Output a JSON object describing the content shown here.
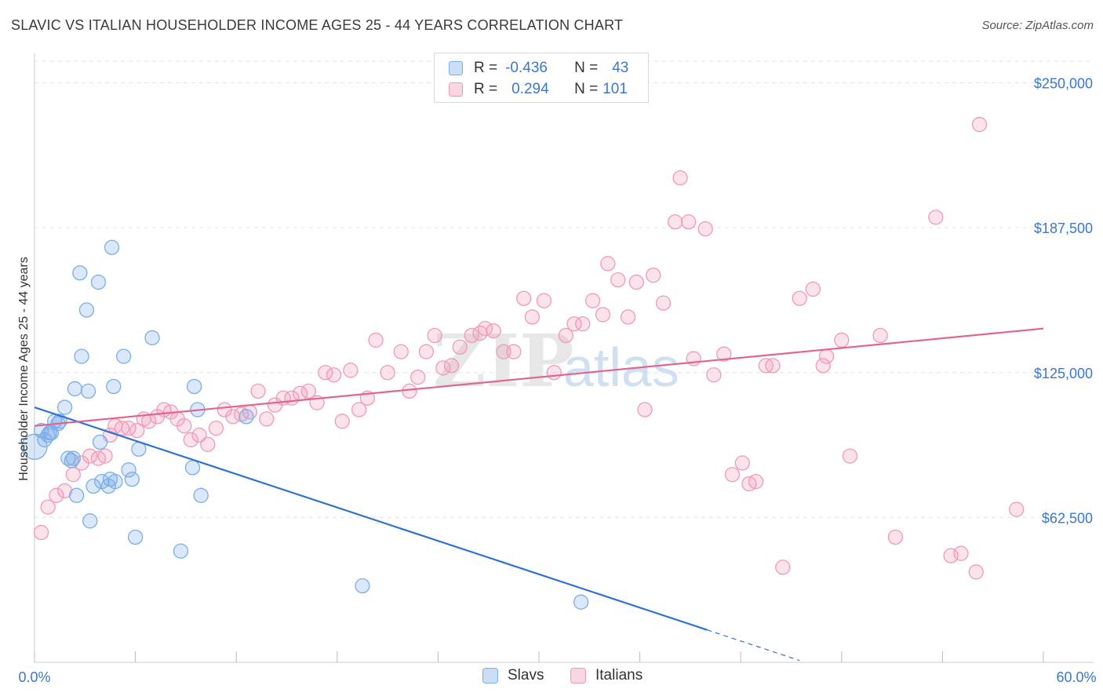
{
  "title": "SLAVIC VS ITALIAN HOUSEHOLDER INCOME AGES 25 - 44 YEARS CORRELATION CHART",
  "source": "Source: ZipAtlas.com",
  "watermark": {
    "zip": "ZIP",
    "atlas": "atlas"
  },
  "legend": {
    "rows": [
      {
        "r_label": "R =",
        "r_value": "-0.436",
        "n_label": "N =",
        "n_value": "43",
        "color": "#7aaee8"
      },
      {
        "r_label": "R =",
        "r_value": "0.294",
        "n_label": "N =",
        "n_value": "101",
        "color": "#f09ab6"
      }
    ]
  },
  "bottom_legend": [
    {
      "label": "Slavs",
      "color": "#7aaee8"
    },
    {
      "label": "Italians",
      "color": "#f09ab6"
    }
  ],
  "chart_data": {
    "type": "scatter",
    "title": "SLAVIC VS ITALIAN HOUSEHOLDER INCOME AGES 25 - 44 YEARS CORRELATION CHART",
    "xlabel": "",
    "ylabel": "Householder Income Ages 25 - 44 years",
    "xlim": [
      0,
      60
    ],
    "ylim": [
      0,
      260000
    ],
    "x_tick_labels": [
      "0.0%",
      "60.0%"
    ],
    "y_ticks": [
      {
        "value": 62500,
        "label": "$62,500"
      },
      {
        "value": 125000,
        "label": "$125,000"
      },
      {
        "value": 187500,
        "label": "$187,500"
      },
      {
        "value": 250000,
        "label": "$250,000"
      }
    ],
    "grid": "horizontal dashed",
    "series": [
      {
        "name": "Slavs",
        "color": "#7aaee8",
        "line_color": "#2e72d2",
        "trend": {
          "x0": 0,
          "y0": 110000,
          "x1": 40,
          "y1": 14000,
          "dash_to_x": 45.5
        },
        "points": [
          [
            0.0,
            93000
          ],
          [
            0.4,
            100000
          ],
          [
            0.6,
            96000
          ],
          [
            0.8,
            98000
          ],
          [
            1.0,
            99000
          ],
          [
            1.2,
            104000
          ],
          [
            1.4,
            103000
          ],
          [
            1.8,
            110000
          ],
          [
            2.0,
            88000
          ],
          [
            2.2,
            87000
          ],
          [
            2.4,
            118000
          ],
          [
            2.5,
            72000
          ],
          [
            2.7,
            168000
          ],
          [
            2.8,
            132000
          ],
          [
            3.1,
            152000
          ],
          [
            3.2,
            117000
          ],
          [
            3.3,
            61000
          ],
          [
            3.5,
            76000
          ],
          [
            3.8,
            164000
          ],
          [
            3.9,
            95000
          ],
          [
            4.0,
            78000
          ],
          [
            4.4,
            76000
          ],
          [
            4.6,
            179000
          ],
          [
            4.7,
            119000
          ],
          [
            4.8,
            78000
          ],
          [
            5.3,
            132000
          ],
          [
            5.6,
            83000
          ],
          [
            5.8,
            79000
          ],
          [
            6.0,
            54000
          ],
          [
            6.2,
            92000
          ],
          [
            7.0,
            140000
          ],
          [
            8.7,
            48000
          ],
          [
            9.4,
            84000
          ],
          [
            9.5,
            119000
          ],
          [
            9.7,
            109000
          ],
          [
            9.9,
            72000
          ],
          [
            12.6,
            106000
          ],
          [
            19.5,
            33000
          ],
          [
            32.5,
            26000
          ],
          [
            0.9,
            99000
          ],
          [
            1.5,
            104000
          ],
          [
            2.3,
            88000
          ],
          [
            4.5,
            79000
          ]
        ]
      },
      {
        "name": "Italians",
        "color": "#f09ab6",
        "line_color": "#e0658f",
        "trend": {
          "x0": 0,
          "y0": 102000,
          "x1": 60,
          "y1": 144000
        },
        "points": [
          [
            0.4,
            56000
          ],
          [
            0.8,
            67000
          ],
          [
            1.3,
            72000
          ],
          [
            1.8,
            74000
          ],
          [
            2.3,
            81000
          ],
          [
            2.8,
            86000
          ],
          [
            3.3,
            89000
          ],
          [
            3.8,
            88000
          ],
          [
            4.2,
            89000
          ],
          [
            4.5,
            98000
          ],
          [
            4.8,
            102000
          ],
          [
            5.2,
            101000
          ],
          [
            5.6,
            101000
          ],
          [
            6.1,
            100000
          ],
          [
            6.5,
            105000
          ],
          [
            6.8,
            104000
          ],
          [
            7.3,
            106000
          ],
          [
            7.7,
            109000
          ],
          [
            8.1,
            108000
          ],
          [
            8.5,
            105000
          ],
          [
            8.9,
            102000
          ],
          [
            9.3,
            96000
          ],
          [
            9.8,
            98000
          ],
          [
            10.3,
            94000
          ],
          [
            10.8,
            101000
          ],
          [
            11.3,
            109000
          ],
          [
            11.8,
            106000
          ],
          [
            12.3,
            107000
          ],
          [
            12.8,
            108000
          ],
          [
            13.3,
            117000
          ],
          [
            13.8,
            105000
          ],
          [
            14.3,
            111000
          ],
          [
            14.8,
            114000
          ],
          [
            15.3,
            114000
          ],
          [
            15.8,
            116000
          ],
          [
            16.3,
            117000
          ],
          [
            16.8,
            112000
          ],
          [
            17.3,
            125000
          ],
          [
            17.8,
            124000
          ],
          [
            18.3,
            104000
          ],
          [
            18.8,
            126000
          ],
          [
            19.3,
            109000
          ],
          [
            19.8,
            114000
          ],
          [
            20.3,
            139000
          ],
          [
            21.0,
            125000
          ],
          [
            21.8,
            134000
          ],
          [
            22.3,
            117000
          ],
          [
            22.8,
            123000
          ],
          [
            23.3,
            134000
          ],
          [
            23.8,
            141000
          ],
          [
            24.3,
            127000
          ],
          [
            24.8,
            128000
          ],
          [
            25.3,
            136000
          ],
          [
            26.0,
            141000
          ],
          [
            26.5,
            142000
          ],
          [
            26.8,
            144000
          ],
          [
            27.3,
            143000
          ],
          [
            27.9,
            134000
          ],
          [
            28.5,
            134000
          ],
          [
            29.1,
            157000
          ],
          [
            29.6,
            149000
          ],
          [
            30.3,
            156000
          ],
          [
            30.9,
            125000
          ],
          [
            31.6,
            141000
          ],
          [
            32.1,
            146000
          ],
          [
            32.6,
            146000
          ],
          [
            33.2,
            156000
          ],
          [
            33.8,
            150000
          ],
          [
            34.1,
            172000
          ],
          [
            34.7,
            165000
          ],
          [
            35.3,
            149000
          ],
          [
            35.8,
            164000
          ],
          [
            36.3,
            109000
          ],
          [
            36.8,
            167000
          ],
          [
            37.4,
            155000
          ],
          [
            38.1,
            190000
          ],
          [
            38.4,
            209000
          ],
          [
            38.9,
            190000
          ],
          [
            39.2,
            131000
          ],
          [
            39.9,
            187000
          ],
          [
            40.4,
            124000
          ],
          [
            41.0,
            133000
          ],
          [
            41.5,
            81000
          ],
          [
            42.1,
            86000
          ],
          [
            42.5,
            77000
          ],
          [
            42.9,
            78000
          ],
          [
            43.5,
            128000
          ],
          [
            43.9,
            128000
          ],
          [
            44.5,
            41000
          ],
          [
            45.5,
            157000
          ],
          [
            46.3,
            161000
          ],
          [
            46.9,
            128000
          ],
          [
            47.1,
            132000
          ],
          [
            48.0,
            139000
          ],
          [
            48.5,
            89000
          ],
          [
            50.3,
            141000
          ],
          [
            51.2,
            54000
          ],
          [
            53.6,
            192000
          ],
          [
            54.5,
            46000
          ],
          [
            55.1,
            47000
          ],
          [
            56.0,
            39000
          ],
          [
            56.2,
            232000
          ],
          [
            58.4,
            66000
          ]
        ]
      }
    ]
  }
}
